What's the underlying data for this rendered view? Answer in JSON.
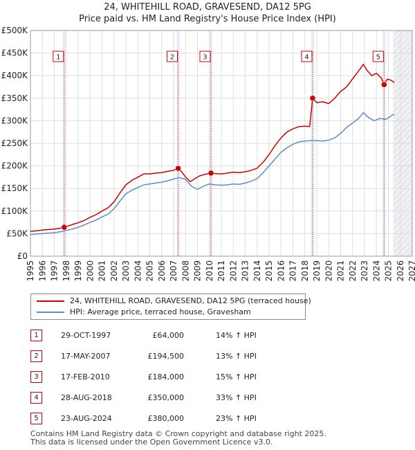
{
  "title_line1": "24, WHITEHILL ROAD, GRAVESEND, DA12 5PG",
  "title_line2": "Price paid vs. HM Land Registry's House Price Index (HPI)",
  "colors": {
    "property": "#cc0000",
    "hpi": "#5b8cc9",
    "marker_line": "#cc0000",
    "shade": "#e4ebf7",
    "grid": "#dddddd"
  },
  "chart_data": {
    "type": "line",
    "title": "Price paid vs. HM Land Registry's House Price Index (HPI)",
    "xlabel": "",
    "ylabel": "",
    "xlim": [
      1995,
      2027
    ],
    "ylim": [
      0,
      500000
    ],
    "x_ticks": [
      1995,
      1996,
      1997,
      1998,
      1999,
      2000,
      2001,
      2002,
      2003,
      2004,
      2005,
      2006,
      2007,
      2008,
      2009,
      2010,
      2011,
      2012,
      2013,
      2014,
      2015,
      2016,
      2017,
      2018,
      2019,
      2020,
      2021,
      2022,
      2023,
      2024,
      2025,
      2026,
      2027
    ],
    "y_ticks": [
      {
        "value": 0,
        "label": "£0"
      },
      {
        "value": 50000,
        "label": "£50K"
      },
      {
        "value": 100000,
        "label": "£100K"
      },
      {
        "value": 150000,
        "label": "£150K"
      },
      {
        "value": 200000,
        "label": "£200K"
      },
      {
        "value": 250000,
        "label": "£250K"
      },
      {
        "value": 300000,
        "label": "£300K"
      },
      {
        "value": 350000,
        "label": "£350K"
      },
      {
        "value": 400000,
        "label": "£400K"
      },
      {
        "value": 450000,
        "label": "£450K"
      },
      {
        "value": 500000,
        "label": "£500K"
      }
    ],
    "grid": true,
    "shaded_future_from": 2025.4,
    "series": [
      {
        "name": "24, WHITEHILL ROAD, GRAVESEND, DA12 5PG (terraced house)",
        "key": "property",
        "x": [
          1995.0,
          1995.5,
          1996.0,
          1996.5,
          1997.0,
          1997.5,
          1997.83,
          1998.5,
          1999.0,
          1999.5,
          2000.0,
          2000.5,
          2001.0,
          2001.5,
          2002.0,
          2002.5,
          2003.0,
          2003.5,
          2004.0,
          2004.5,
          2005.0,
          2005.5,
          2006.0,
          2006.5,
          2007.0,
          2007.38,
          2007.7,
          2008.0,
          2008.4,
          2008.8,
          2009.2,
          2009.6,
          2010.13,
          2010.5,
          2011.0,
          2011.5,
          2012.0,
          2012.5,
          2013.0,
          2013.5,
          2014.0,
          2014.5,
          2015.0,
          2015.5,
          2016.0,
          2016.5,
          2017.0,
          2017.5,
          2018.0,
          2018.4,
          2018.65,
          2018.8,
          2019.0,
          2019.5,
          2020.0,
          2020.5,
          2021.0,
          2021.5,
          2022.0,
          2022.5,
          2022.9,
          2023.2,
          2023.6,
          2024.0,
          2024.4,
          2024.64,
          2024.9,
          2025.2,
          2025.5
        ],
        "y": [
          55000,
          56000,
          58000,
          59000,
          60000,
          62000,
          64000,
          70000,
          74000,
          79000,
          86000,
          92000,
          100000,
          107000,
          120000,
          140000,
          158000,
          168000,
          175000,
          182000,
          182000,
          184000,
          185000,
          188000,
          190000,
          194500,
          186000,
          175000,
          165000,
          172000,
          178000,
          181000,
          184000,
          183000,
          182000,
          184000,
          186000,
          185000,
          187000,
          190000,
          195000,
          208000,
          225000,
          245000,
          262000,
          275000,
          282000,
          287000,
          288000,
          287000,
          350000,
          346000,
          340000,
          342000,
          338000,
          350000,
          365000,
          375000,
          393000,
          410000,
          425000,
          412000,
          400000,
          405000,
          395000,
          380000,
          392000,
          390000,
          385000
        ]
      },
      {
        "name": "HPI: Average price, terraced house, Gravesham",
        "key": "hpi",
        "x": [
          1995.0,
          1995.5,
          1996.0,
          1996.5,
          1997.0,
          1997.5,
          1998.0,
          1998.5,
          1999.0,
          1999.5,
          2000.0,
          2000.5,
          2001.0,
          2001.5,
          2002.0,
          2002.5,
          2003.0,
          2003.5,
          2004.0,
          2004.5,
          2005.0,
          2005.5,
          2006.0,
          2006.5,
          2007.0,
          2007.5,
          2008.0,
          2008.5,
          2009.0,
          2009.5,
          2010.0,
          2010.5,
          2011.0,
          2011.5,
          2012.0,
          2012.5,
          2013.0,
          2013.5,
          2014.0,
          2014.5,
          2015.0,
          2015.5,
          2016.0,
          2016.5,
          2017.0,
          2017.5,
          2018.0,
          2018.5,
          2019.0,
          2019.5,
          2020.0,
          2020.5,
          2021.0,
          2021.5,
          2022.0,
          2022.5,
          2022.9,
          2023.3,
          2023.8,
          2024.3,
          2024.8,
          2025.2,
          2025.5
        ],
        "y": [
          48000,
          49000,
          50000,
          51000,
          52000,
          54000,
          57000,
          60000,
          64000,
          69000,
          75000,
          80000,
          87000,
          93000,
          105000,
          122000,
          138000,
          146000,
          152000,
          158000,
          160000,
          162000,
          164000,
          167000,
          171000,
          174000,
          170000,
          155000,
          148000,
          155000,
          160000,
          158000,
          157000,
          158000,
          160000,
          159000,
          162000,
          166000,
          172000,
          185000,
          200000,
          215000,
          230000,
          240000,
          248000,
          253000,
          255000,
          256000,
          256000,
          255000,
          257000,
          262000,
          272000,
          285000,
          295000,
          305000,
          318000,
          308000,
          300000,
          305000,
          303000,
          310000,
          315000
        ]
      }
    ],
    "sales": [
      {
        "num": "1",
        "x": 1997.83,
        "price_value": 64000,
        "date": "29-OCT-1997",
        "price": "£64,000",
        "hpi": "14% ↑ HPI"
      },
      {
        "num": "2",
        "x": 2007.38,
        "price_value": 194500,
        "date": "17-MAY-2007",
        "price": "£194,500",
        "hpi": "13% ↑ HPI"
      },
      {
        "num": "3",
        "x": 2010.13,
        "price_value": 184000,
        "date": "17-FEB-2010",
        "price": "£184,000",
        "hpi": "15% ↑ HPI"
      },
      {
        "num": "4",
        "x": 2018.65,
        "price_value": 350000,
        "date": "28-AUG-2018",
        "price": "£350,000",
        "hpi": "33% ↑ HPI"
      },
      {
        "num": "5",
        "x": 2024.64,
        "price_value": 380000,
        "date": "23-AUG-2024",
        "price": "£380,000",
        "hpi": "23% ↑ HPI"
      }
    ]
  },
  "legend": {
    "property_label": "24, WHITEHILL ROAD, GRAVESEND, DA12 5PG (terraced house)",
    "hpi_label": "HPI: Average price, terraced house, Gravesham"
  },
  "footer": {
    "line1": "Contains HM Land Registry data © Crown copyright and database right 2025.",
    "line2": "This data is licensed under the Open Government Licence v3.0."
  }
}
